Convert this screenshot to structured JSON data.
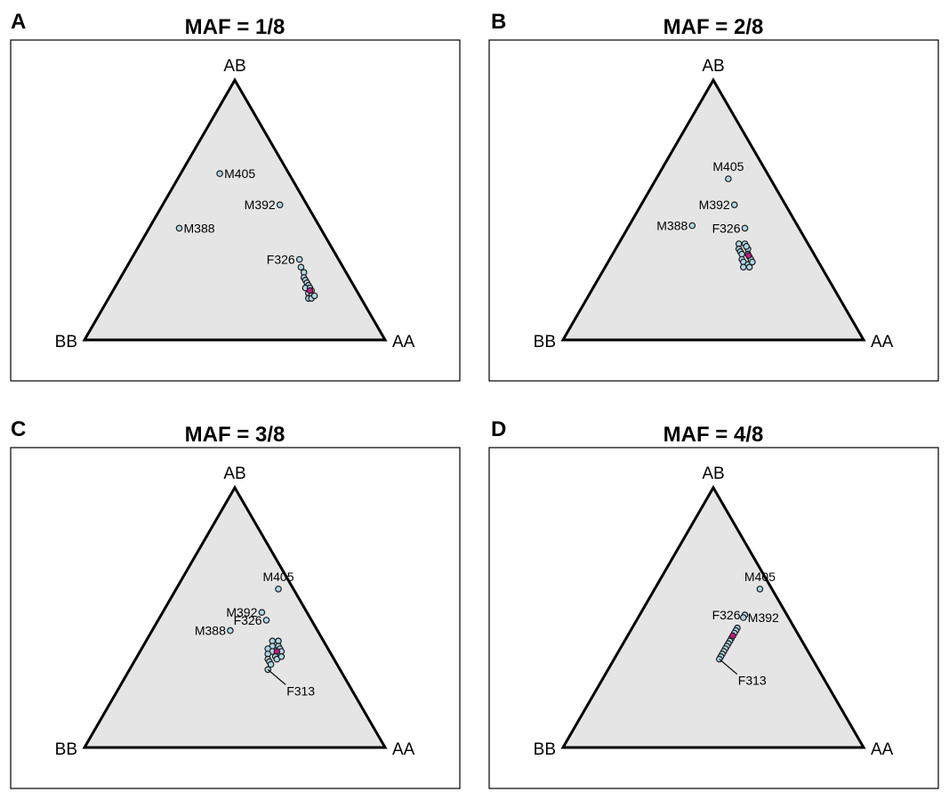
{
  "colors": {
    "triangle_fill": "#e5e5e5",
    "triangle_stroke": "#000000",
    "point_fill": "#add8e6",
    "point_stroke": "#1a1a1a",
    "centroid_fill": "#c71585",
    "panel_border": "#000000"
  },
  "chart_data": [
    {
      "type": "scatter",
      "plot": "ternary",
      "panel": "A",
      "title": "MAF = 1/8",
      "vertices": {
        "top": "AB",
        "left": "BB",
        "right": "AA"
      },
      "points": [
        {
          "label": "M405",
          "AA": 0.13,
          "AB": 0.64,
          "BB": 0.23,
          "label_side": "right"
        },
        {
          "label": "M392",
          "AA": 0.39,
          "AB": 0.52,
          "BB": 0.09,
          "label_side": "left"
        },
        {
          "label": "M388",
          "AA": 0.1,
          "AB": 0.43,
          "BB": 0.47,
          "label_side": "right"
        },
        {
          "label": "F326",
          "AA": 0.56,
          "AB": 0.31,
          "BB": 0.13,
          "label_side": "left"
        },
        {
          "label": "",
          "AA": 0.58,
          "AB": 0.28,
          "BB": 0.14
        },
        {
          "label": "",
          "AA": 0.6,
          "AB": 0.26,
          "BB": 0.14
        },
        {
          "label": "",
          "AA": 0.61,
          "AB": 0.24,
          "BB": 0.15
        },
        {
          "label": "",
          "AA": 0.62,
          "AB": 0.23,
          "BB": 0.15
        },
        {
          "label": "",
          "AA": 0.63,
          "AB": 0.22,
          "BB": 0.15
        },
        {
          "label": "",
          "AA": 0.64,
          "AB": 0.21,
          "BB": 0.15
        },
        {
          "label": "",
          "AA": 0.635,
          "AB": 0.2,
          "BB": 0.165
        },
        {
          "label": "",
          "AA": 0.65,
          "AB": 0.2,
          "BB": 0.15
        },
        {
          "label": "",
          "AA": 0.655,
          "AB": 0.18,
          "BB": 0.165
        },
        {
          "label": "",
          "AA": 0.66,
          "AB": 0.19,
          "BB": 0.15
        },
        {
          "label": "",
          "AA": 0.67,
          "AB": 0.17,
          "BB": 0.16
        },
        {
          "label": "",
          "AA": 0.665,
          "AB": 0.16,
          "BB": 0.175
        },
        {
          "label": "",
          "AA": 0.675,
          "AB": 0.16,
          "BB": 0.165
        },
        {
          "label": "",
          "AA": 0.68,
          "AB": 0.17,
          "BB": 0.15
        }
      ],
      "centroid": {
        "AA": 0.655,
        "AB": 0.19,
        "BB": 0.155
      }
    },
    {
      "type": "scatter",
      "plot": "ternary",
      "panel": "B",
      "title": "MAF = 2/8",
      "vertices": {
        "top": "AB",
        "left": "BB",
        "right": "AA"
      },
      "points": [
        {
          "label": "M405",
          "AA": 0.24,
          "AB": 0.62,
          "BB": 0.14,
          "label_side": "top"
        },
        {
          "label": "M392",
          "AA": 0.31,
          "AB": 0.52,
          "BB": 0.17,
          "label_side": "left"
        },
        {
          "label": "M388",
          "AA": 0.21,
          "AB": 0.44,
          "BB": 0.35,
          "label_side": "left"
        },
        {
          "label": "F326",
          "AA": 0.39,
          "AB": 0.43,
          "BB": 0.18,
          "label_side": "left"
        },
        {
          "label": "",
          "AA": 0.4,
          "AB": 0.37,
          "BB": 0.23
        },
        {
          "label": "",
          "AA": 0.42,
          "AB": 0.37,
          "BB": 0.21
        },
        {
          "label": "",
          "AA": 0.41,
          "AB": 0.35,
          "BB": 0.24
        },
        {
          "label": "",
          "AA": 0.44,
          "AB": 0.35,
          "BB": 0.21
        },
        {
          "label": "",
          "AA": 0.42,
          "AB": 0.34,
          "BB": 0.24
        },
        {
          "label": "",
          "AA": 0.45,
          "AB": 0.33,
          "BB": 0.22
        },
        {
          "label": "",
          "AA": 0.43,
          "AB": 0.33,
          "BB": 0.24
        },
        {
          "label": "",
          "AA": 0.46,
          "AB": 0.32,
          "BB": 0.22
        },
        {
          "label": "",
          "AA": 0.44,
          "AB": 0.31,
          "BB": 0.25
        },
        {
          "label": "",
          "AA": 0.47,
          "AB": 0.31,
          "BB": 0.22
        },
        {
          "label": "",
          "AA": 0.45,
          "AB": 0.3,
          "BB": 0.25
        },
        {
          "label": "",
          "AA": 0.47,
          "AB": 0.29,
          "BB": 0.24
        },
        {
          "label": "",
          "AA": 0.46,
          "AB": 0.28,
          "BB": 0.26
        },
        {
          "label": "",
          "AA": 0.48,
          "AB": 0.3,
          "BB": 0.22
        },
        {
          "label": "",
          "AA": 0.43,
          "AB": 0.36,
          "BB": 0.21
        },
        {
          "label": "",
          "AA": 0.48,
          "AB": 0.28,
          "BB": 0.24
        }
      ],
      "centroid": {
        "AA": 0.455,
        "AB": 0.325,
        "BB": 0.22
      }
    },
    {
      "type": "scatter",
      "plot": "ternary",
      "panel": "C",
      "title": "MAF = 3/8",
      "vertices": {
        "top": "AB",
        "left": "BB",
        "right": "AA"
      },
      "points": [
        {
          "label": "M405",
          "AA": 0.34,
          "AB": 0.61,
          "BB": 0.05,
          "label_side": "top"
        },
        {
          "label": "M392",
          "AA": 0.33,
          "AB": 0.52,
          "BB": 0.15,
          "label_side": "left"
        },
        {
          "label": "F326",
          "AA": 0.36,
          "AB": 0.49,
          "BB": 0.15,
          "label_side": "left"
        },
        {
          "label": "M388",
          "AA": 0.26,
          "AB": 0.45,
          "BB": 0.29,
          "label_side": "left"
        },
        {
          "label": "F313",
          "AA": 0.46,
          "AB": 0.3,
          "BB": 0.24,
          "label_side": "leader"
        },
        {
          "label": "",
          "AA": 0.42,
          "AB": 0.41,
          "BB": 0.17
        },
        {
          "label": "",
          "AA": 0.44,
          "AB": 0.41,
          "BB": 0.15
        },
        {
          "label": "",
          "AA": 0.43,
          "AB": 0.39,
          "BB": 0.18
        },
        {
          "label": "",
          "AA": 0.45,
          "AB": 0.39,
          "BB": 0.16
        },
        {
          "label": "",
          "AA": 0.42,
          "AB": 0.38,
          "BB": 0.2
        },
        {
          "label": "",
          "AA": 0.46,
          "AB": 0.38,
          "BB": 0.16
        },
        {
          "label": "",
          "AA": 0.44,
          "AB": 0.37,
          "BB": 0.19
        },
        {
          "label": "",
          "AA": 0.47,
          "AB": 0.37,
          "BB": 0.16
        },
        {
          "label": "",
          "AA": 0.43,
          "AB": 0.36,
          "BB": 0.21
        },
        {
          "label": "",
          "AA": 0.46,
          "AB": 0.35,
          "BB": 0.19
        },
        {
          "label": "",
          "AA": 0.44,
          "AB": 0.34,
          "BB": 0.22
        },
        {
          "label": "",
          "AA": 0.47,
          "AB": 0.34,
          "BB": 0.19
        },
        {
          "label": "",
          "AA": 0.45,
          "AB": 0.33,
          "BB": 0.22
        },
        {
          "label": "",
          "AA": 0.48,
          "AB": 0.35,
          "BB": 0.17
        },
        {
          "label": "",
          "AA": 0.46,
          "AB": 0.32,
          "BB": 0.22
        }
      ],
      "centroid": {
        "AA": 0.455,
        "AB": 0.37,
        "BB": 0.175
      }
    },
    {
      "type": "scatter",
      "plot": "ternary",
      "panel": "D",
      "title": "MAF = 4/8",
      "vertices": {
        "top": "AB",
        "left": "BB",
        "right": "AA"
      },
      "points": [
        {
          "label": "M405",
          "AA": 0.35,
          "AB": 0.61,
          "BB": 0.04,
          "label_side": "top"
        },
        {
          "label": "F326",
          "AA": 0.35,
          "AB": 0.51,
          "BB": 0.14,
          "label_side": "left"
        },
        {
          "label": "M392",
          "AA": 0.35,
          "AB": 0.5,
          "BB": 0.15,
          "label_side": "right"
        },
        {
          "label": "F313",
          "AA": 0.35,
          "AB": 0.34,
          "BB": 0.31,
          "label_side": "leader"
        },
        {
          "label": "",
          "AA": 0.35,
          "AB": 0.46,
          "BB": 0.19
        },
        {
          "label": "",
          "AA": 0.35,
          "AB": 0.45,
          "BB": 0.2
        },
        {
          "label": "",
          "AA": 0.35,
          "AB": 0.44,
          "BB": 0.21
        },
        {
          "label": "",
          "AA": 0.35,
          "AB": 0.43,
          "BB": 0.22
        },
        {
          "label": "",
          "AA": 0.35,
          "AB": 0.42,
          "BB": 0.23
        },
        {
          "label": "",
          "AA": 0.35,
          "AB": 0.41,
          "BB": 0.24
        },
        {
          "label": "",
          "AA": 0.35,
          "AB": 0.4,
          "BB": 0.25
        },
        {
          "label": "",
          "AA": 0.35,
          "AB": 0.39,
          "BB": 0.26
        },
        {
          "label": "",
          "AA": 0.35,
          "AB": 0.38,
          "BB": 0.27
        },
        {
          "label": "",
          "AA": 0.35,
          "AB": 0.37,
          "BB": 0.28
        },
        {
          "label": "",
          "AA": 0.35,
          "AB": 0.36,
          "BB": 0.29
        },
        {
          "label": "",
          "AA": 0.35,
          "AB": 0.35,
          "BB": 0.3
        }
      ],
      "centroid": {
        "AA": 0.35,
        "AB": 0.43,
        "BB": 0.22
      }
    }
  ]
}
